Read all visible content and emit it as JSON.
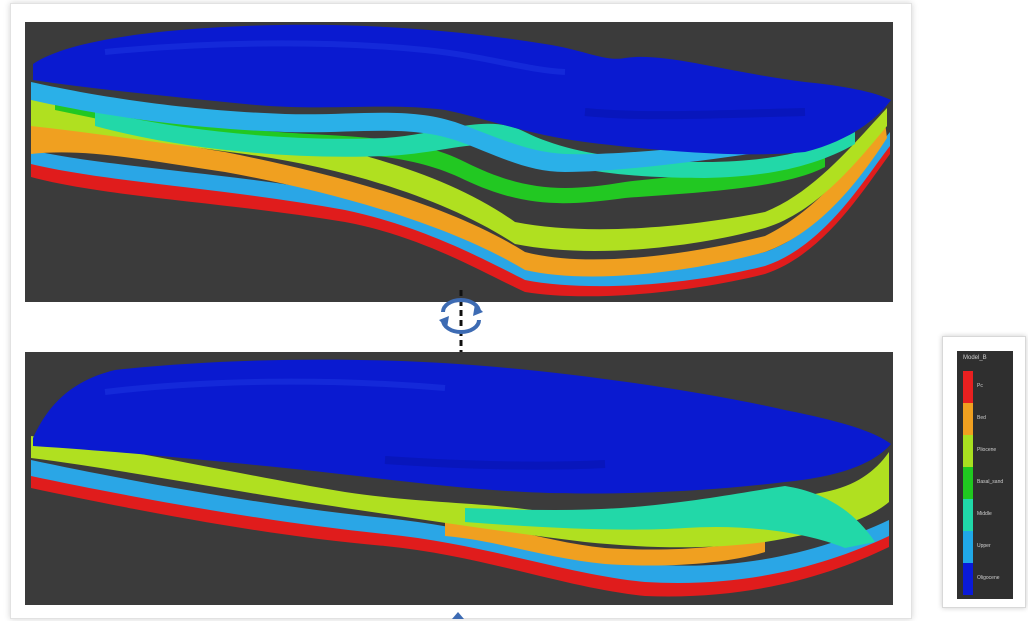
{
  "views": [
    {
      "name": "top-view"
    },
    {
      "name": "bottom-view"
    }
  ],
  "legend": {
    "title": "Model_B",
    "items": [
      {
        "label": "Pc",
        "color": "#e82020"
      },
      {
        "label": "Bed",
        "color": "#f0a020"
      },
      {
        "label": "Pliocene",
        "color": "#a8e020"
      },
      {
        "label": "Basal_sand",
        "color": "#20c820"
      },
      {
        "label": "Middle",
        "color": "#20d8a8"
      },
      {
        "label": "Upper",
        "color": "#20a8e8"
      },
      {
        "label": "Oligocene",
        "color": "#0a1ad8"
      }
    ]
  },
  "colors": {
    "background": "#3b3b3b",
    "surface": "#0a1ad0",
    "arrow": "#3d6bb3"
  }
}
